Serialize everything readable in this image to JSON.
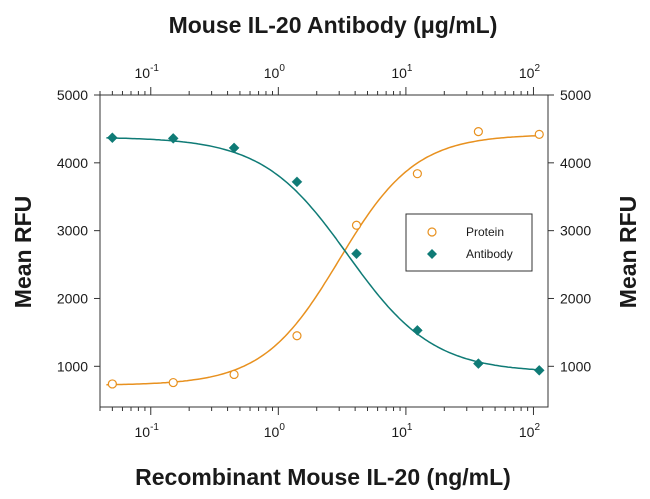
{
  "chart_data": {
    "type": "scatter",
    "title": "Mouse IL-20 Antibody (μg/mL)",
    "xlabel": "Recombinant Mouse IL-20 (ng/mL)",
    "ylabel": "Mean RFU",
    "ylabel_right": "Mean RFU",
    "x_scale": "log",
    "xlim": [
      0.04,
      130
    ],
    "ylim": [
      400,
      5000
    ],
    "yticks": [
      1000,
      2000,
      3000,
      4000,
      5000
    ],
    "xticks": [
      {
        "value": 0.1,
        "base": "10",
        "exp": "-1"
      },
      {
        "value": 1,
        "base": "10",
        "exp": "0"
      },
      {
        "value": 10,
        "base": "10",
        "exp": "1"
      },
      {
        "value": 100,
        "base": "10",
        "exp": "2"
      }
    ],
    "grid": false,
    "legend_position": "center-right",
    "series": [
      {
        "name": "Protein",
        "marker": "open-circle",
        "color": "#E8911F",
        "x": [
          0.05,
          0.15,
          0.45,
          1.4,
          4.1,
          12.3,
          37,
          111
        ],
        "y": [
          740,
          760,
          880,
          1450,
          3080,
          3840,
          4460,
          4420
        ],
        "fit": {
          "bottom": 720,
          "top": 4420,
          "ec50": 3.0,
          "hill": 1.45
        }
      },
      {
        "name": "Antibody",
        "marker": "filled-diamond",
        "color": "#0F7B76",
        "x": [
          0.05,
          0.15,
          0.45,
          1.4,
          4.1,
          12.3,
          37,
          111
        ],
        "y": [
          4370,
          4360,
          4220,
          3720,
          2660,
          1530,
          1040,
          940
        ],
        "fit": {
          "bottom": 910,
          "top": 4380,
          "ec50": 3.5,
          "hill": 1.3
        }
      }
    ]
  }
}
